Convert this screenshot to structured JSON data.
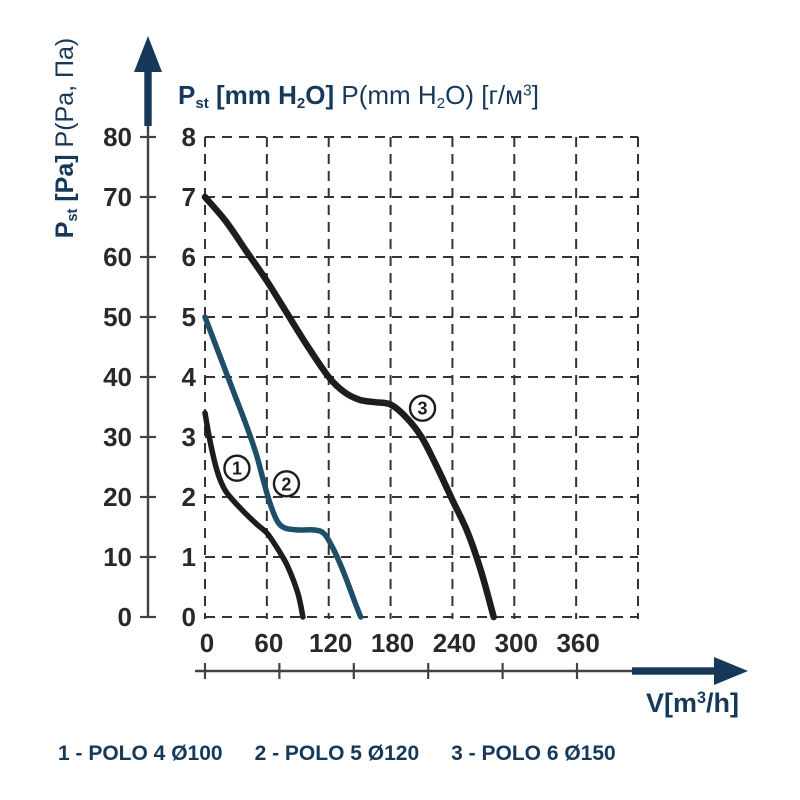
{
  "colors": {
    "navy": "#16395a",
    "teal_curve": "#1d4f68",
    "black_curve": "#1d1d1f",
    "grid": "#333336",
    "tick_text": "#29292b"
  },
  "title_segments": [
    {
      "t": "P",
      "b": 1
    },
    {
      "t": "st",
      "b": 1,
      "v": "sub"
    },
    {
      "t": " [mm H",
      "b": 1
    },
    {
      "t": "2",
      "b": 1,
      "v": "sub"
    },
    {
      "t": "O] ",
      "b": 1
    },
    {
      "t": "P(mm H",
      "b": 0
    },
    {
      "t": "2",
      "b": 0,
      "v": "sub"
    },
    {
      "t": "O) [г/м",
      "b": 0
    },
    {
      "t": "3",
      "b": 0,
      "v": "sup"
    },
    {
      "t": "]",
      "b": 0
    }
  ],
  "y_axis_title_segments": [
    {
      "t": "P",
      "b": 1
    },
    {
      "t": "st",
      "b": 1,
      "v": "sub"
    },
    {
      "t": " [Pa] ",
      "b": 1
    },
    {
      "t": "P(Pa, Па)",
      "b": 0
    }
  ],
  "x_axis_title_segments": [
    {
      "t": "V[m",
      "b": 1
    },
    {
      "t": "3",
      "b": 1,
      "v": "sup"
    },
    {
      "t": "/h]",
      "b": 1
    }
  ],
  "legend": {
    "separator": " - ",
    "items": [
      {
        "num": "1",
        "name": "POLO 4 Ø100"
      },
      {
        "num": "2",
        "name": "POLO 5 Ø120"
      },
      {
        "num": "3",
        "name": "POLO 6 Ø150"
      }
    ]
  },
  "chart_data": {
    "type": "line",
    "title": "Pst [mm H2O] P(mm H2O) [g/m3]",
    "xlabel": "V[m3/h]",
    "ylabel_outer": "Pst [Pa] P(Pa, Pa)",
    "grid": "dashed",
    "x_axis": {
      "label_ticks": [
        0,
        60,
        120,
        180,
        240,
        300,
        360
      ],
      "grid_ticks": [
        0,
        60,
        120,
        180,
        240,
        300,
        360,
        420
      ],
      "max": 420
    },
    "y_axis_pa": {
      "ticks": [
        0,
        10,
        20,
        30,
        40,
        50,
        60,
        70,
        80
      ],
      "max": 80
    },
    "y_axis_mm": {
      "ticks": [
        0,
        1,
        2,
        3,
        4,
        5,
        6,
        7,
        8
      ],
      "max": 8
    },
    "series": [
      {
        "name": "POLO 4 Ø100",
        "marker": "1",
        "color_key": "black_curve",
        "width": 5.5,
        "points": [
          [
            0,
            3.4
          ],
          [
            5,
            2.92
          ],
          [
            12,
            2.42
          ],
          [
            20,
            2.1
          ],
          [
            35,
            1.8
          ],
          [
            50,
            1.55
          ],
          [
            60,
            1.4
          ],
          [
            70,
            1.15
          ],
          [
            80,
            0.85
          ],
          [
            90,
            0.4
          ],
          [
            95,
            0
          ]
        ]
      },
      {
        "name": "POLO 5 Ø120",
        "marker": "2",
        "color_key": "teal_curve",
        "width": 5.5,
        "points": [
          [
            0,
            5.0
          ],
          [
            10,
            4.55
          ],
          [
            20,
            4.1
          ],
          [
            30,
            3.65
          ],
          [
            40,
            3.2
          ],
          [
            50,
            2.7
          ],
          [
            57,
            2.25
          ],
          [
            63,
            1.9
          ],
          [
            70,
            1.6
          ],
          [
            78,
            1.48
          ],
          [
            92,
            1.45
          ],
          [
            106,
            1.45
          ],
          [
            116,
            1.38
          ],
          [
            126,
            1.08
          ],
          [
            136,
            0.68
          ],
          [
            146,
            0.22
          ],
          [
            151,
            0
          ]
        ]
      },
      {
        "name": "POLO 6 Ø150",
        "marker": "3",
        "color_key": "black_curve",
        "width": 6.5,
        "points": [
          [
            0,
            7.0
          ],
          [
            20,
            6.6
          ],
          [
            40,
            6.1
          ],
          [
            60,
            5.6
          ],
          [
            80,
            5.05
          ],
          [
            100,
            4.5
          ],
          [
            120,
            4.0
          ],
          [
            135,
            3.75
          ],
          [
            150,
            3.62
          ],
          [
            165,
            3.58
          ],
          [
            180,
            3.54
          ],
          [
            195,
            3.33
          ],
          [
            210,
            3.0
          ],
          [
            225,
            2.5
          ],
          [
            240,
            1.95
          ],
          [
            255,
            1.4
          ],
          [
            268,
            0.75
          ],
          [
            280,
            0
          ]
        ]
      }
    ],
    "curve_markers": [
      {
        "label": "1",
        "v": 31,
        "p": 2.48
      },
      {
        "label": "2",
        "v": 79,
        "p": 2.22
      },
      {
        "label": "3",
        "v": 211,
        "p": 3.48
      }
    ]
  }
}
